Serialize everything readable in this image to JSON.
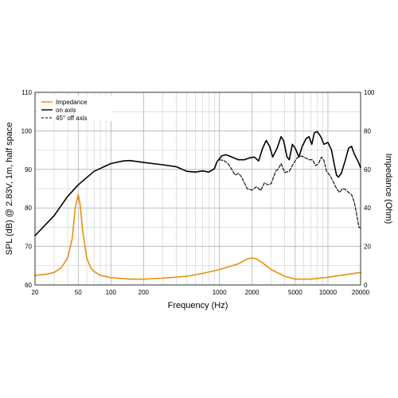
{
  "chart_data": {
    "type": "line",
    "xlabel": "Frequency (Hz)",
    "ylabel_left": "SPL (dB) @ 2.83V, 1m, half space",
    "ylabel_right": "Impedance (Ohm)",
    "x_scale": "log",
    "xlim": [
      20,
      20000
    ],
    "ylim_left": [
      60,
      110
    ],
    "ylim_right": [
      0,
      100
    ],
    "x_ticks": [
      {
        "value": 20,
        "label": "20"
      },
      {
        "value": 50,
        "label": "50"
      },
      {
        "value": 100,
        "label": "100"
      },
      {
        "value": 200,
        "label": "200"
      },
      {
        "value": 1000,
        "label": "1000"
      },
      {
        "value": 2000,
        "label": "2000"
      },
      {
        "value": 5000,
        "label": "5000"
      },
      {
        "value": 10000,
        "label": "10000"
      },
      {
        "value": 20000,
        "label": "20000"
      }
    ],
    "y_ticks_left": [
      {
        "value": 60,
        "label": "60"
      },
      {
        "value": 70,
        "label": "70"
      },
      {
        "value": 80,
        "label": "80"
      },
      {
        "value": 90,
        "label": "90"
      },
      {
        "value": 100,
        "label": "100"
      },
      {
        "value": 110,
        "label": "110"
      }
    ],
    "y_ticks_right": [
      {
        "value": 0,
        "label": "0"
      },
      {
        "value": 20,
        "label": "20"
      },
      {
        "value": 40,
        "label": "40"
      },
      {
        "value": 60,
        "label": "60"
      },
      {
        "value": 80,
        "label": "80"
      },
      {
        "value": 100,
        "label": "100"
      }
    ],
    "grid": true,
    "legend_position": "top-left",
    "series": [
      {
        "name": "Impedance",
        "axis": "right",
        "color": "#e8900c",
        "dash": "solid",
        "points": [
          [
            20,
            5
          ],
          [
            25,
            5.5
          ],
          [
            30,
            6.5
          ],
          [
            35,
            9
          ],
          [
            40,
            14
          ],
          [
            44,
            24
          ],
          [
            47,
            40
          ],
          [
            50,
            47
          ],
          [
            52,
            42
          ],
          [
            55,
            28
          ],
          [
            60,
            14
          ],
          [
            65,
            9
          ],
          [
            70,
            7
          ],
          [
            80,
            5
          ],
          [
            100,
            3.8
          ],
          [
            150,
            3
          ],
          [
            200,
            3
          ],
          [
            300,
            3.5
          ],
          [
            500,
            4.5
          ],
          [
            700,
            6
          ],
          [
            1000,
            8
          ],
          [
            1500,
            11
          ],
          [
            1800,
            13.5
          ],
          [
            2000,
            14
          ],
          [
            2200,
            13.5
          ],
          [
            2500,
            11.5
          ],
          [
            3000,
            8
          ],
          [
            4000,
            4.5
          ],
          [
            5000,
            3
          ],
          [
            7000,
            3
          ],
          [
            10000,
            4
          ],
          [
            15000,
            5.5
          ],
          [
            20000,
            6.5
          ]
        ]
      },
      {
        "name": "on axis",
        "axis": "left",
        "color": "#000000",
        "dash": "solid",
        "points": [
          [
            20,
            72.8
          ],
          [
            30,
            78
          ],
          [
            40,
            83
          ],
          [
            50,
            86
          ],
          [
            70,
            89.5
          ],
          [
            100,
            91.5
          ],
          [
            130,
            92.2
          ],
          [
            150,
            92.3
          ],
          [
            200,
            91.8
          ],
          [
            300,
            91.2
          ],
          [
            400,
            90.7
          ],
          [
            500,
            89.5
          ],
          [
            600,
            89.3
          ],
          [
            700,
            89.6
          ],
          [
            800,
            89.3
          ],
          [
            900,
            90.2
          ],
          [
            950,
            92
          ],
          [
            1050,
            93.5
          ],
          [
            1150,
            93.8
          ],
          [
            1300,
            93.2
          ],
          [
            1500,
            92.5
          ],
          [
            1700,
            92.5
          ],
          [
            1900,
            93
          ],
          [
            2100,
            93.2
          ],
          [
            2300,
            92.2
          ],
          [
            2500,
            95.5
          ],
          [
            2700,
            97.5
          ],
          [
            2900,
            96
          ],
          [
            3100,
            93.2
          ],
          [
            3400,
            95.5
          ],
          [
            3700,
            98.5
          ],
          [
            3900,
            97.5
          ],
          [
            4200,
            93.2
          ],
          [
            4400,
            92.5
          ],
          [
            4700,
            96.5
          ],
          [
            5000,
            95.5
          ],
          [
            5400,
            93.2
          ],
          [
            5800,
            96
          ],
          [
            6300,
            98
          ],
          [
            6700,
            98.5
          ],
          [
            7100,
            96.5
          ],
          [
            7500,
            99.5
          ],
          [
            8000,
            99.8
          ],
          [
            8600,
            98.5
          ],
          [
            9200,
            96.5
          ],
          [
            10000,
            97
          ],
          [
            10800,
            95
          ],
          [
            11500,
            91
          ],
          [
            12000,
            88.5
          ],
          [
            12500,
            88
          ],
          [
            13300,
            89
          ],
          [
            14500,
            92.5
          ],
          [
            15500,
            95.5
          ],
          [
            16500,
            96
          ],
          [
            17500,
            94
          ],
          [
            19000,
            92
          ],
          [
            20000,
            90.5
          ]
        ]
      },
      {
        "name": "45° off axis",
        "axis": "left",
        "color": "#000000",
        "dash": "dashed",
        "points": [
          [
            1000,
            92.5
          ],
          [
            1100,
            92.3
          ],
          [
            1200,
            91.5
          ],
          [
            1300,
            90
          ],
          [
            1400,
            88.5
          ],
          [
            1500,
            89
          ],
          [
            1600,
            88
          ],
          [
            1700,
            86.5
          ],
          [
            1800,
            85
          ],
          [
            2000,
            84.6
          ],
          [
            2200,
            85.5
          ],
          [
            2400,
            84.5
          ],
          [
            2600,
            86.5
          ],
          [
            2800,
            86
          ],
          [
            3000,
            86.3
          ],
          [
            3300,
            89.5
          ],
          [
            3500,
            90.2
          ],
          [
            3700,
            91.5
          ],
          [
            4000,
            89.2
          ],
          [
            4400,
            89.5
          ],
          [
            4700,
            91
          ],
          [
            5200,
            93
          ],
          [
            5700,
            93.5
          ],
          [
            6200,
            93
          ],
          [
            6700,
            92.5
          ],
          [
            7200,
            92.5
          ],
          [
            7700,
            91
          ],
          [
            8200,
            91.5
          ],
          [
            8700,
            93.2
          ],
          [
            9200,
            92.3
          ],
          [
            9700,
            89.5
          ],
          [
            10400,
            88.5
          ],
          [
            11200,
            86.8
          ],
          [
            12000,
            85
          ],
          [
            12800,
            84
          ],
          [
            13600,
            85
          ],
          [
            14500,
            84.8
          ],
          [
            15500,
            84
          ],
          [
            16500,
            83.5
          ],
          [
            17500,
            81.5
          ],
          [
            18500,
            78
          ],
          [
            19300,
            75
          ],
          [
            20000,
            74.8
          ]
        ]
      }
    ]
  }
}
